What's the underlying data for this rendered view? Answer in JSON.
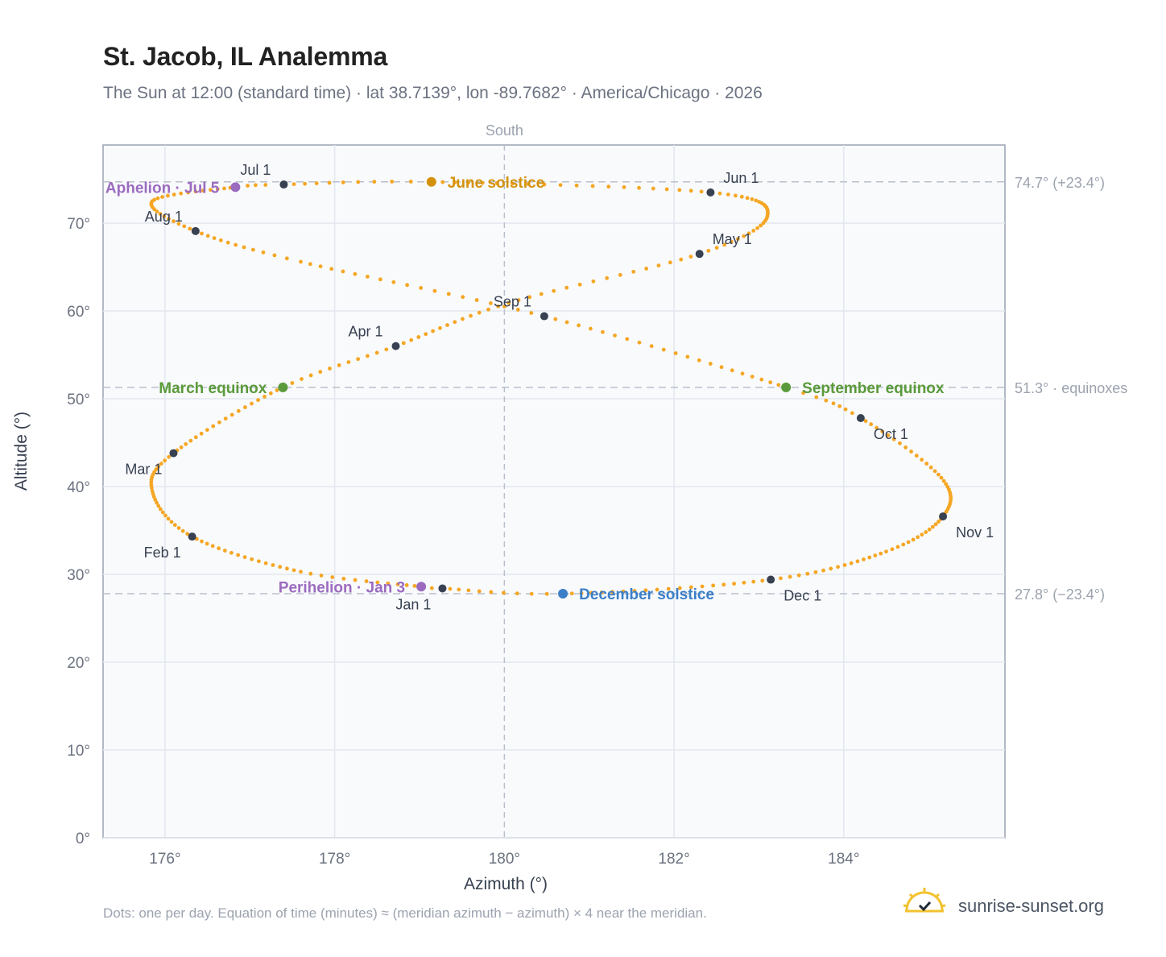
{
  "header": {
    "title": "St. Jacob, IL Analemma",
    "subtitle": "The Sun at 12:00 (standard time) · lat 38.7139°, lon -89.7682° · America/Chicago · 2026"
  },
  "footer": {
    "note": "Dots: one per day. Equation of time (minutes) ≈ (meridian azimuth − azimuth) × 4 near the meridian.",
    "brand": "sunrise-sunset.org"
  },
  "chart_data": {
    "type": "scatter",
    "xlabel": "Azimuth (°)",
    "ylabel": "Altitude (°)",
    "xlim": [
      175.27,
      185.9
    ],
    "ylim": [
      0,
      78.9
    ],
    "xticks": [
      176,
      178,
      180,
      182,
      184
    ],
    "xtick_labels": [
      "176°",
      "178°",
      "180°",
      "182°",
      "184°"
    ],
    "yticks": [
      0,
      10,
      20,
      30,
      40,
      50,
      60,
      70
    ],
    "ytick_labels": [
      "0°",
      "10°",
      "20°",
      "30°",
      "40°",
      "50°",
      "60°",
      "70°"
    ],
    "grid": true,
    "meridian": {
      "azimuth": 180,
      "label": "South"
    },
    "reference_lines": [
      {
        "altitude": 74.7,
        "label": "74.7° (+23.4°)"
      },
      {
        "altitude": 51.3,
        "label": "51.3° · equinoxes"
      },
      {
        "altitude": 27.8,
        "label": "27.8° (−23.4°)"
      }
    ],
    "series_color": "#f5a623",
    "daily_points": [
      {
        "day": 1,
        "az": 179.27,
        "alt": 28.4
      },
      {
        "day": 3,
        "az": 179.02,
        "alt": 28.6
      },
      {
        "day": 15,
        "az": 177.6,
        "alt": 30.3
      },
      {
        "day": 32,
        "az": 176.32,
        "alt": 34.3
      },
      {
        "day": 47,
        "az": 175.85,
        "alt": 39.5
      },
      {
        "day": 60,
        "az": 176.1,
        "alt": 43.8
      },
      {
        "day": 79,
        "az": 177.39,
        "alt": 51.3
      },
      {
        "day": 91,
        "az": 178.72,
        "alt": 56.0
      },
      {
        "day": 105,
        "az": 180.05,
        "alt": 60.9
      },
      {
        "day": 121,
        "az": 182.3,
        "alt": 66.5
      },
      {
        "day": 135,
        "az": 183.1,
        "alt": 70.8
      },
      {
        "day": 152,
        "az": 182.43,
        "alt": 73.5
      },
      {
        "day": 172,
        "az": 179.14,
        "alt": 74.7
      },
      {
        "day": 182,
        "az": 177.4,
        "alt": 74.4
      },
      {
        "day": 186,
        "az": 176.83,
        "alt": 74.1
      },
      {
        "day": 200,
        "az": 175.85,
        "alt": 72.5
      },
      {
        "day": 213,
        "az": 176.36,
        "alt": 69.1
      },
      {
        "day": 225,
        "az": 177.6,
        "alt": 65.6
      },
      {
        "day": 244,
        "az": 180.47,
        "alt": 59.4
      },
      {
        "day": 266,
        "az": 183.32,
        "alt": 51.3
      },
      {
        "day": 274,
        "az": 184.2,
        "alt": 47.8
      },
      {
        "day": 290,
        "az": 185.15,
        "alt": 41.0
      },
      {
        "day": 305,
        "az": 185.17,
        "alt": 36.6
      },
      {
        "day": 319,
        "az": 184.5,
        "alt": 32.6
      },
      {
        "day": 335,
        "az": 183.14,
        "alt": 29.4
      },
      {
        "day": 355,
        "az": 180.69,
        "alt": 27.8
      },
      {
        "day": 365,
        "az": 179.27,
        "alt": 28.4
      }
    ],
    "month_markers": [
      {
        "label": "Jan 1",
        "az": 179.27,
        "alt": 28.4,
        "pos": "below-left"
      },
      {
        "label": "Feb 1",
        "az": 176.32,
        "alt": 34.3,
        "pos": "below-left"
      },
      {
        "label": "Mar 1",
        "az": 176.1,
        "alt": 43.8,
        "pos": "below-left"
      },
      {
        "label": "Apr 1",
        "az": 178.72,
        "alt": 56.0,
        "pos": "above-left"
      },
      {
        "label": "May 1",
        "az": 182.3,
        "alt": 66.5,
        "pos": "above-right"
      },
      {
        "label": "Jun 1",
        "az": 182.43,
        "alt": 73.5,
        "pos": "above-right"
      },
      {
        "label": "Jul 1",
        "az": 177.4,
        "alt": 74.4,
        "pos": "above-left"
      },
      {
        "label": "Aug 1",
        "az": 176.36,
        "alt": 69.1,
        "pos": "above-left"
      },
      {
        "label": "Sep 1",
        "az": 180.47,
        "alt": 59.4,
        "pos": "above-left"
      },
      {
        "label": "Oct 1",
        "az": 184.2,
        "alt": 47.8,
        "pos": "below-right"
      },
      {
        "label": "Nov 1",
        "az": 185.17,
        "alt": 36.6,
        "pos": "below-right"
      },
      {
        "label": "Dec 1",
        "az": 183.14,
        "alt": 29.4,
        "pos": "below-right"
      }
    ],
    "events": [
      {
        "label": "June solstice",
        "az": 179.14,
        "alt": 74.7,
        "color": "#d4920c",
        "side": "right"
      },
      {
        "label": "March equinox",
        "az": 177.39,
        "alt": 51.3,
        "color": "#5a9a3a",
        "side": "left"
      },
      {
        "label": "September equinox",
        "az": 183.32,
        "alt": 51.3,
        "color": "#5a9a3a",
        "side": "right"
      },
      {
        "label": "December solstice",
        "az": 180.69,
        "alt": 27.8,
        "color": "#3a7fc8",
        "side": "right"
      },
      {
        "label": "Aphelion · Jul 5",
        "az": 176.83,
        "alt": 74.1,
        "color": "#9b6bc0",
        "side": "left"
      },
      {
        "label": "Perihelion · Jan 3",
        "az": 179.02,
        "alt": 28.6,
        "color": "#9b6bc0",
        "side": "left"
      }
    ]
  }
}
